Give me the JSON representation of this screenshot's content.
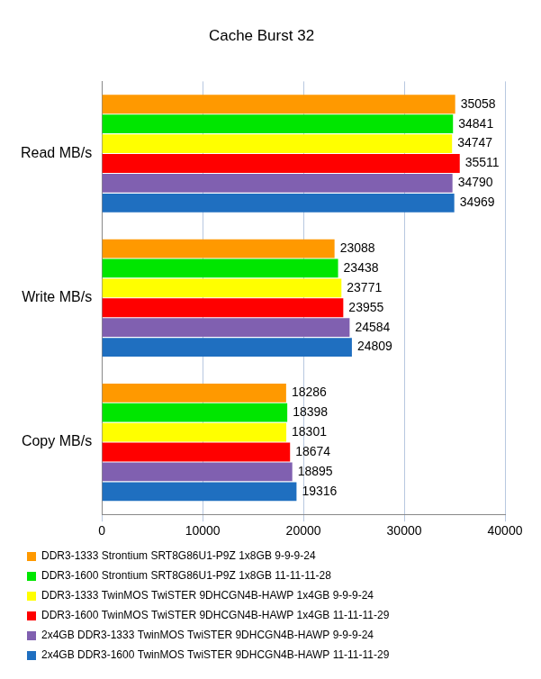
{
  "chart_data": {
    "type": "bar",
    "title": "Cache Burst 32",
    "orientation": "horizontal",
    "categories": [
      "Read MB/s",
      "Write MB/s",
      "Copy MB/s"
    ],
    "series": [
      {
        "name": "DDR3-1333 Strontium SRT8G86U1-P9Z 1x8GB 9-9-9-24",
        "color": "#ff9900",
        "values": [
          35058,
          23088,
          18286
        ]
      },
      {
        "name": "DDR3-1600 Strontium SRT8G86U1-P9Z 1x8GB 11-11-11-28",
        "color": "#00e600",
        "values": [
          34841,
          23438,
          18398
        ]
      },
      {
        "name": "DDR3-1333 TwinMOS TwiSTER 9DHCGN4B-HAWP 1x4GB 9-9-9-24",
        "color": "#ffff00",
        "values": [
          34747,
          23771,
          18301
        ]
      },
      {
        "name": "DDR3-1600 TwinMOS TwiSTER 9DHCGN4B-HAWP 1x4GB 11-11-11-29",
        "color": "#ff0000",
        "values": [
          35511,
          23955,
          18674
        ]
      },
      {
        "name": "2x4GB DDR3-1333 TwinMOS TwiSTER 9DHCGN4B-HAWP 9-9-9-24",
        "color": "#8060b0",
        "values": [
          34790,
          24584,
          18895
        ]
      },
      {
        "name": "2x4GB DDR3-1600 TwinMOS TwiSTER 9DHCGN4B-HAWP 11-11-11-29",
        "color": "#1f6fc0",
        "values": [
          34969,
          24809,
          19316
        ]
      }
    ],
    "xlim": [
      0,
      40000
    ],
    "xticks": [
      0,
      10000,
      20000,
      30000,
      40000
    ],
    "grid": true,
    "legend": "bottom",
    "data_labels": true
  }
}
